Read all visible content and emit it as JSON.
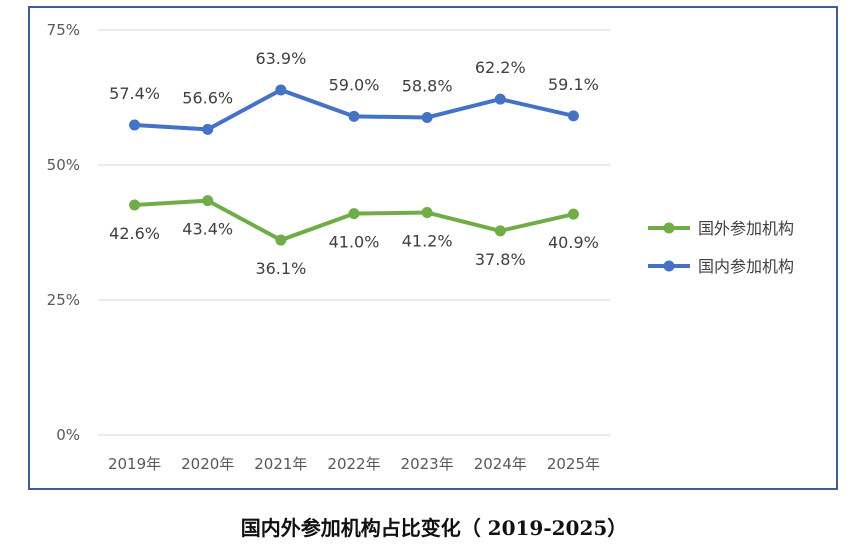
{
  "caption": "国内外参加机构占比变化（ 2019-2025）",
  "chart_data": {
    "type": "line",
    "categories": [
      "2019年",
      "2020年",
      "2021年",
      "2022年",
      "2023年",
      "2024年",
      "2025年"
    ],
    "y_ticks": [
      "0%",
      "25%",
      "50%",
      "75%"
    ],
    "ylim": [
      0,
      75
    ],
    "grid": true,
    "legend_position": "right",
    "series": [
      {
        "name": "国外参加机构",
        "color": "#70ad47",
        "values": [
          42.6,
          43.4,
          36.1,
          41.0,
          41.2,
          37.8,
          40.9
        ],
        "labels": [
          "42.6%",
          "43.4%",
          "36.1%",
          "41.0%",
          "41.2%",
          "37.8%",
          "40.9%"
        ],
        "label_position": "below"
      },
      {
        "name": "国内参加机构",
        "color": "#4472c4",
        "values": [
          57.4,
          56.6,
          63.9,
          59.0,
          58.8,
          62.2,
          59.1
        ],
        "labels": [
          "57.4%",
          "56.6%",
          "63.9%",
          "59.0%",
          "58.8%",
          "62.2%",
          "59.1%"
        ],
        "label_position": "above"
      }
    ]
  }
}
